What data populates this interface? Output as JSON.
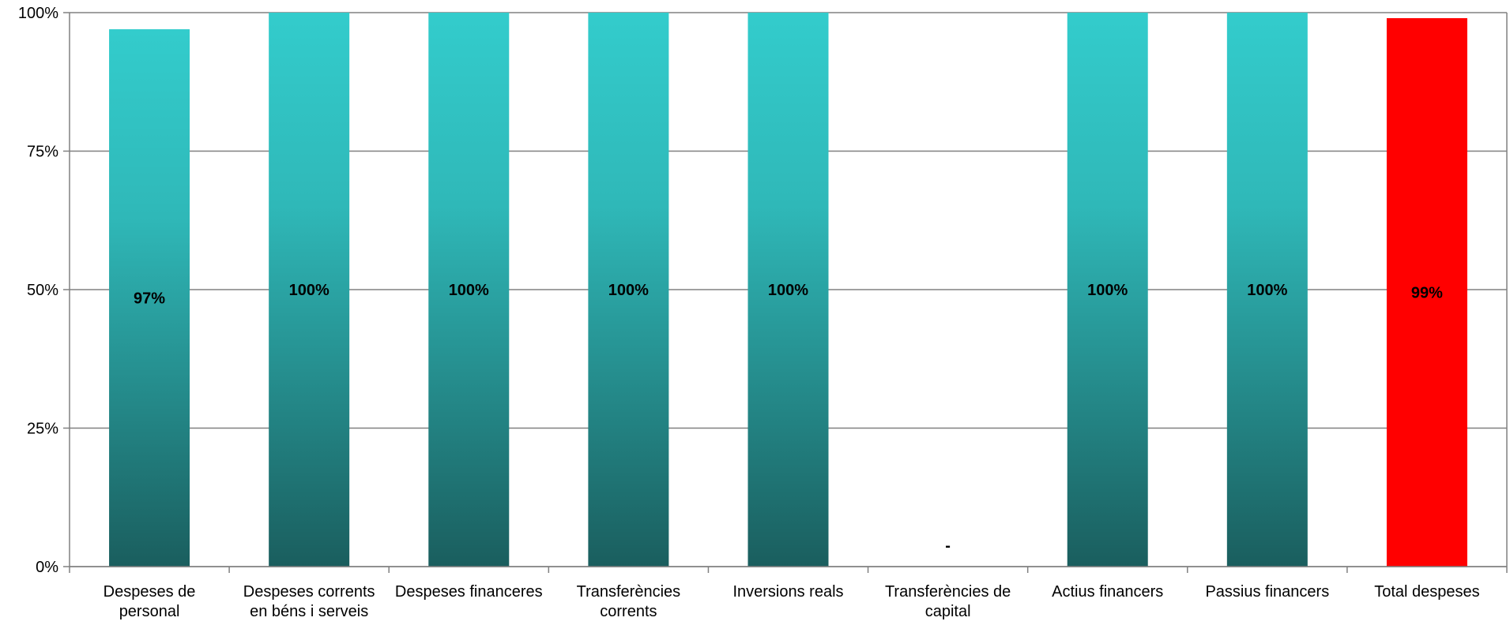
{
  "chart_data": {
    "type": "bar",
    "categories": [
      [
        "Despeses de",
        "personal"
      ],
      [
        "Despeses corrents",
        "en béns i serveis"
      ],
      [
        "Despeses financeres"
      ],
      [
        "Transferències",
        "corrents"
      ],
      [
        "Inversions reals"
      ],
      [
        "Transferències de",
        "capital"
      ],
      [
        "Actius financers"
      ],
      [
        "Passius financers"
      ],
      [
        "Total despeses"
      ]
    ],
    "values": [
      97,
      100,
      100,
      100,
      100,
      null,
      100,
      100,
      99
    ],
    "data_labels": [
      "97%",
      "100%",
      "100%",
      "100%",
      "100%",
      "-",
      "100%",
      "100%",
      "99%"
    ],
    "ylim": [
      0,
      100
    ],
    "yticks": [
      0,
      25,
      50,
      75,
      100
    ],
    "ytick_labels": [
      "0%",
      "25%",
      "50%",
      "75%",
      "100%"
    ],
    "grid": true,
    "colors": {
      "bar_top": "#33CCCC",
      "bar_bottom": "#1A5E5E",
      "highlight": "#FF0000",
      "grid": "#808080",
      "axis": "#808080"
    },
    "highlight_index": 8
  }
}
